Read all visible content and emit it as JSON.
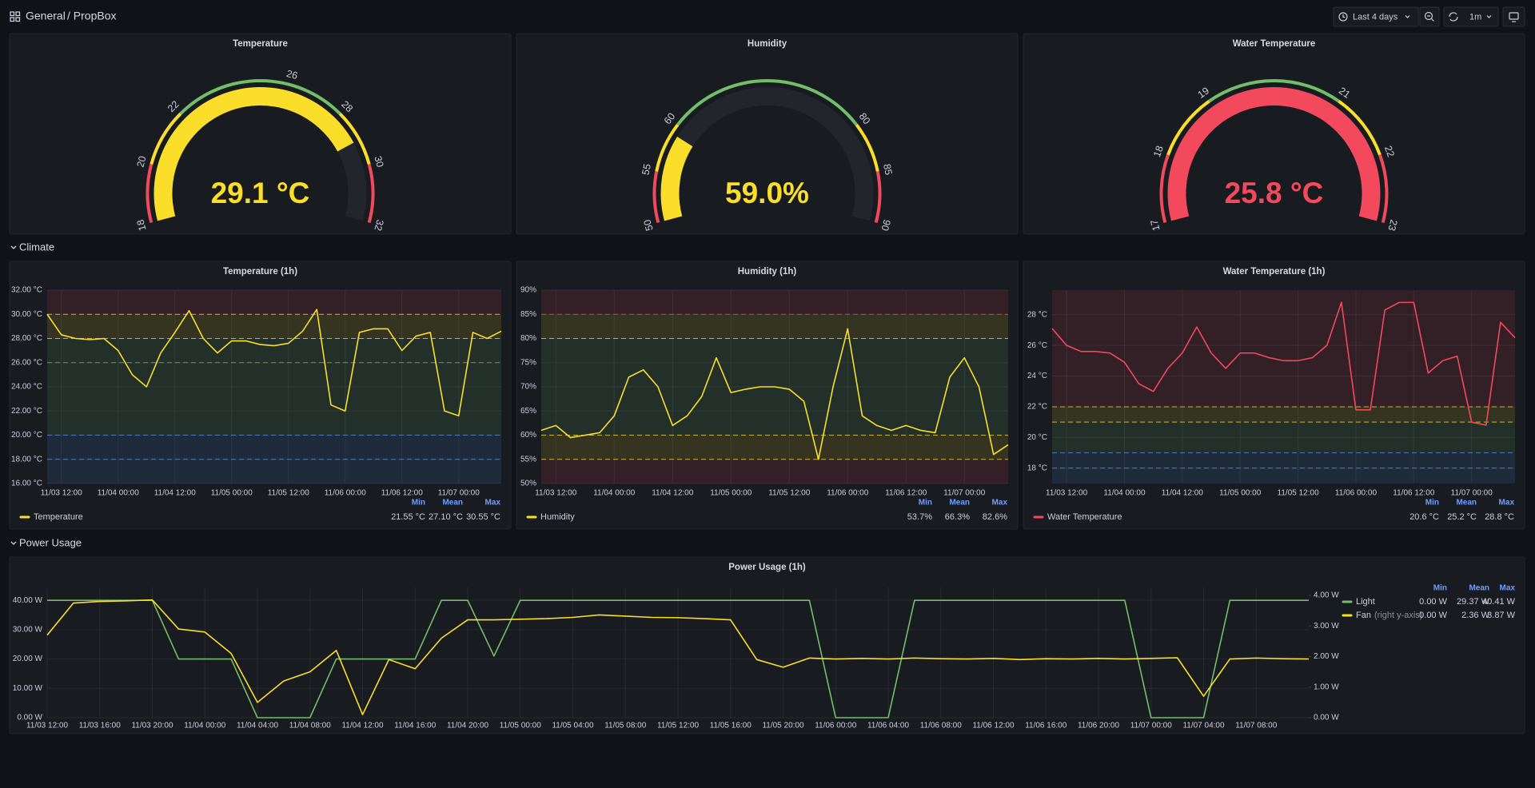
{
  "header": {
    "breadcrumb_root": "General",
    "breadcrumb_page": "/ PropBox",
    "time_range": "Last 4 days",
    "refresh": "1m"
  },
  "rows": [
    "Climate",
    "Power Usage"
  ],
  "chart_data": [
    {
      "type": "gauge",
      "title": "Temperature",
      "value": 29.1,
      "value_label": "29.1 °C",
      "color": "#fade2a",
      "range": [
        18,
        32
      ],
      "ticks": [
        18,
        20,
        22,
        26,
        28,
        30,
        32
      ],
      "bands": [
        {
          "from": 18,
          "to": 20,
          "color": "#f2495c"
        },
        {
          "from": 20,
          "to": 22,
          "color": "#fade2a"
        },
        {
          "from": 22,
          "to": 28,
          "color": "#73bf69"
        },
        {
          "from": 28,
          "to": 30,
          "color": "#fade2a"
        },
        {
          "from": 30,
          "to": 32,
          "color": "#f2495c"
        }
      ]
    },
    {
      "type": "gauge",
      "title": "Humidity",
      "value": 59.0,
      "value_label": "59.0%",
      "color": "#fade2a",
      "range": [
        50,
        90
      ],
      "ticks": [
        50,
        55,
        60,
        80,
        85,
        90
      ],
      "bands": [
        {
          "from": 50,
          "to": 55,
          "color": "#f2495c"
        },
        {
          "from": 55,
          "to": 60,
          "color": "#fade2a"
        },
        {
          "from": 60,
          "to": 80,
          "color": "#73bf69"
        },
        {
          "from": 80,
          "to": 85,
          "color": "#fade2a"
        },
        {
          "from": 85,
          "to": 90,
          "color": "#f2495c"
        }
      ]
    },
    {
      "type": "gauge",
      "title": "Water Temperature",
      "value": 25.8,
      "value_label": "25.8 °C",
      "color": "#f2495c",
      "range": [
        17,
        23
      ],
      "ticks": [
        17,
        18,
        19,
        21,
        22,
        23
      ],
      "bands": [
        {
          "from": 17,
          "to": 18,
          "color": "#f2495c"
        },
        {
          "from": 18,
          "to": 19,
          "color": "#fade2a"
        },
        {
          "from": 19,
          "to": 21,
          "color": "#73bf69"
        },
        {
          "from": 21,
          "to": 22,
          "color": "#fade2a"
        },
        {
          "from": 22,
          "to": 23,
          "color": "#f2495c"
        }
      ]
    },
    {
      "type": "line",
      "title": "Temperature (1h)",
      "x": [
        "11/03 09:00",
        "11/03 12:00",
        "11/03 15:00",
        "11/03 18:00",
        "11/03 21:00",
        "11/04 00:00",
        "11/04 03:00",
        "11/04 06:00",
        "11/04 09:00",
        "11/04 12:00",
        "11/04 15:00",
        "11/04 18:00",
        "11/04 21:00",
        "11/05 00:00",
        "11/05 03:00",
        "11/05 06:00",
        "11/05 09:00",
        "11/05 12:00",
        "11/05 15:00",
        "11/05 18:00",
        "11/05 21:00",
        "11/06 00:00",
        "11/06 03:00",
        "11/06 06:00",
        "11/06 09:00",
        "11/06 12:00",
        "11/06 15:00",
        "11/06 18:00",
        "11/06 21:00",
        "11/07 00:00",
        "11/07 03:00",
        "11/07 06:00",
        "11/07 09:00"
      ],
      "xlim": [
        "11/03 09:00",
        "11/07 09:00"
      ],
      "xticks": [
        "11/03 12:00",
        "11/04 00:00",
        "11/04 12:00",
        "11/05 00:00",
        "11/05 12:00",
        "11/06 00:00",
        "11/06 12:00",
        "11/07 00:00"
      ],
      "ylim": [
        16,
        32
      ],
      "yticks": [
        {
          "value": 16,
          "label": "16.00 °C"
        },
        {
          "value": 18,
          "label": "18.00 °C"
        },
        {
          "value": 20,
          "label": "20.00 °C"
        },
        {
          "value": 22,
          "label": "22.00 °C"
        },
        {
          "value": 24,
          "label": "24.00 °C"
        },
        {
          "value": 26,
          "label": "26.00 °C"
        },
        {
          "value": 28,
          "label": "28.00 °C"
        },
        {
          "value": 30,
          "label": "30.00 °C"
        },
        {
          "value": 32,
          "label": "32.00 °C"
        }
      ],
      "bands": [
        {
          "from": 16,
          "to": 20,
          "color": "#5794f2"
        },
        {
          "from": 20,
          "to": 28,
          "color": "#73bf69"
        },
        {
          "from": 28,
          "to": 30,
          "color": "#fade2a"
        },
        {
          "from": 30,
          "to": 32,
          "color": "#f2495c"
        }
      ],
      "threshold_lines": [
        {
          "value": 18,
          "color": "#5794f2"
        },
        {
          "value": 20,
          "color": "#5794f2"
        },
        {
          "value": 26,
          "color": "#73bf69"
        },
        {
          "value": 28,
          "color": "#fade2a"
        },
        {
          "value": 30,
          "color": "#fade2a"
        }
      ],
      "grid": true,
      "legend": "bottom",
      "legend_headers": [
        "Min",
        "Mean",
        "Max"
      ],
      "series": [
        {
          "name": "Temperature",
          "color": "#fade2a",
          "values": [
            30.0,
            28.3,
            28.0,
            27.9,
            28.0,
            27.0,
            25.0,
            24.0,
            26.8,
            28.5,
            30.3,
            28.0,
            26.8,
            27.8,
            27.8,
            27.5,
            27.4,
            27.6,
            28.6,
            30.4,
            22.5,
            22.0,
            28.5,
            28.8,
            28.8,
            27.0,
            28.2,
            28.5,
            22.0,
            21.6,
            28.5,
            28.0,
            28.6
          ],
          "stats": [
            "21.55 °C",
            "27.10 °C",
            "30.55 °C"
          ]
        }
      ]
    },
    {
      "type": "line",
      "title": "Humidity (1h)",
      "x": [
        "11/03 09:00",
        "11/03 12:00",
        "11/03 15:00",
        "11/03 18:00",
        "11/03 21:00",
        "11/04 00:00",
        "11/04 03:00",
        "11/04 06:00",
        "11/04 09:00",
        "11/04 12:00",
        "11/04 15:00",
        "11/04 18:00",
        "11/04 21:00",
        "11/05 00:00",
        "11/05 03:00",
        "11/05 06:00",
        "11/05 09:00",
        "11/05 12:00",
        "11/05 15:00",
        "11/05 18:00",
        "11/05 21:00",
        "11/06 00:00",
        "11/06 03:00",
        "11/06 06:00",
        "11/06 09:00",
        "11/06 12:00",
        "11/06 15:00",
        "11/06 18:00",
        "11/06 21:00",
        "11/07 00:00",
        "11/07 03:00",
        "11/07 06:00",
        "11/07 09:00"
      ],
      "xlim": [
        "11/03 09:00",
        "11/07 09:00"
      ],
      "xticks": [
        "11/03 12:00",
        "11/04 00:00",
        "11/04 12:00",
        "11/05 00:00",
        "11/05 12:00",
        "11/06 00:00",
        "11/06 12:00",
        "11/07 00:00"
      ],
      "ylim": [
        50,
        90
      ],
      "yticks": [
        {
          "value": 50,
          "label": "50%"
        },
        {
          "value": 55,
          "label": "55%"
        },
        {
          "value": 60,
          "label": "60%"
        },
        {
          "value": 65,
          "label": "65%"
        },
        {
          "value": 70,
          "label": "70%"
        },
        {
          "value": 75,
          "label": "75%"
        },
        {
          "value": 80,
          "label": "80%"
        },
        {
          "value": 85,
          "label": "85%"
        },
        {
          "value": 90,
          "label": "90%"
        }
      ],
      "bands": [
        {
          "from": 50,
          "to": 55,
          "color": "#f2495c"
        },
        {
          "from": 55,
          "to": 60,
          "color": "#fade2a"
        },
        {
          "from": 60,
          "to": 80,
          "color": "#73bf69"
        },
        {
          "from": 80,
          "to": 85,
          "color": "#fade2a"
        },
        {
          "from": 85,
          "to": 90,
          "color": "#f2495c"
        }
      ],
      "threshold_lines": [
        {
          "value": 55,
          "color": "#fade2a"
        },
        {
          "value": 60,
          "color": "#fade2a"
        },
        {
          "value": 80,
          "color": "#fade2a"
        },
        {
          "value": 85,
          "color": "#f2495c"
        }
      ],
      "grid": true,
      "legend": "bottom",
      "legend_headers": [
        "Min",
        "Mean",
        "Max"
      ],
      "series": [
        {
          "name": "Humidity",
          "color": "#fade2a",
          "values": [
            61,
            62,
            59.5,
            60,
            60.5,
            64,
            72,
            73.5,
            70,
            62,
            64,
            68,
            76,
            68.8,
            69.5,
            70,
            70,
            69.5,
            67,
            55,
            70,
            82,
            64,
            62,
            61,
            62,
            61,
            60.5,
            72,
            76,
            70,
            56,
            58
          ],
          "stats": [
            "53.7%",
            "66.3%",
            "82.6%"
          ]
        }
      ]
    },
    {
      "type": "line",
      "title": "Water Temperature (1h)",
      "x": [
        "11/03 09:00",
        "11/03 12:00",
        "11/03 15:00",
        "11/03 18:00",
        "11/03 21:00",
        "11/04 00:00",
        "11/04 03:00",
        "11/04 06:00",
        "11/04 09:00",
        "11/04 12:00",
        "11/04 15:00",
        "11/04 18:00",
        "11/04 21:00",
        "11/05 00:00",
        "11/05 03:00",
        "11/05 06:00",
        "11/05 09:00",
        "11/05 12:00",
        "11/05 15:00",
        "11/05 18:00",
        "11/05 21:00",
        "11/06 00:00",
        "11/06 03:00",
        "11/06 06:00",
        "11/06 09:00",
        "11/06 12:00",
        "11/06 15:00",
        "11/06 18:00",
        "11/06 21:00",
        "11/07 00:00",
        "11/07 03:00",
        "11/07 06:00",
        "11/07 09:00"
      ],
      "xlim": [
        "11/03 09:00",
        "11/07 09:00"
      ],
      "xticks": [
        "11/03 12:00",
        "11/04 00:00",
        "11/04 12:00",
        "11/05 00:00",
        "11/05 12:00",
        "11/06 00:00",
        "11/06 12:00",
        "11/07 00:00"
      ],
      "ylim": [
        17,
        29.6
      ],
      "yticks": [
        {
          "value": 18,
          "label": "18 °C"
        },
        {
          "value": 20,
          "label": "20 °C"
        },
        {
          "value": 22,
          "label": "22 °C"
        },
        {
          "value": 24,
          "label": "24 °C"
        },
        {
          "value": 26,
          "label": "26 °C"
        },
        {
          "value": 28,
          "label": "28 °C"
        }
      ],
      "bands": [
        {
          "from": 17,
          "to": 19,
          "color": "#5794f2"
        },
        {
          "from": 19,
          "to": 21,
          "color": "#73bf69"
        },
        {
          "from": 21,
          "to": 22,
          "color": "#fade2a"
        },
        {
          "from": 22,
          "to": 29.6,
          "color": "#f2495c"
        }
      ],
      "threshold_lines": [
        {
          "value": 18,
          "color": "#5794f2"
        },
        {
          "value": 19,
          "color": "#5794f2"
        },
        {
          "value": 21,
          "color": "#fade2a"
        },
        {
          "value": 22,
          "color": "#fade2a"
        }
      ],
      "grid": true,
      "legend": "bottom",
      "legend_headers": [
        "Min",
        "Mean",
        "Max"
      ],
      "series": [
        {
          "name": "Water Temperature",
          "color": "#f2495c",
          "values": [
            27.1,
            26,
            25.6,
            25.6,
            25.5,
            24.9,
            23.5,
            23,
            24.5,
            25.5,
            27.2,
            25.5,
            24.5,
            25.5,
            25.5,
            25.2,
            25,
            25,
            25.2,
            26,
            28.8,
            21.8,
            21.8,
            28.3,
            28.8,
            28.8,
            24.2,
            25,
            25.3,
            21,
            20.8,
            27.5,
            26.5
          ],
          "stats": [
            "20.6 °C",
            "25.2 °C",
            "28.8 °C"
          ]
        }
      ]
    },
    {
      "type": "line",
      "title": "Power Usage (1h)",
      "x": [
        "11/03 12:00",
        "11/03 14:00",
        "11/03 16:00",
        "11/03 18:00",
        "11/03 20:00",
        "11/03 22:00",
        "11/04 00:00",
        "11/04 02:00",
        "11/04 04:00",
        "11/04 06:00",
        "11/04 08:00",
        "11/04 10:00",
        "11/04 12:00",
        "11/04 14:00",
        "11/04 16:00",
        "11/04 18:00",
        "11/04 20:00",
        "11/04 22:00",
        "11/05 00:00",
        "11/05 02:00",
        "11/05 04:00",
        "11/05 06:00",
        "11/05 08:00",
        "11/05 10:00",
        "11/05 12:00",
        "11/05 14:00",
        "11/05 16:00",
        "11/05 18:00",
        "11/05 20:00",
        "11/05 22:00",
        "11/06 00:00",
        "11/06 02:00",
        "11/06 04:00",
        "11/06 06:00",
        "11/06 08:00",
        "11/06 10:00",
        "11/06 12:00",
        "11/06 14:00",
        "11/06 16:00",
        "11/06 18:00",
        "11/06 20:00",
        "11/06 22:00",
        "11/07 00:00",
        "11/07 02:00",
        "11/07 04:00",
        "11/07 06:00",
        "11/07 08:00",
        "11/07 10:00",
        "11/07 12:00"
      ],
      "xlim": [
        "11/03 12:00",
        "11/07 12:00"
      ],
      "xticks": [
        "11/03 12:00",
        "11/03 16:00",
        "11/03 20:00",
        "11/04 00:00",
        "11/04 04:00",
        "11/04 08:00",
        "11/04 12:00",
        "11/04 16:00",
        "11/04 20:00",
        "11/05 00:00",
        "11/05 04:00",
        "11/05 08:00",
        "11/05 12:00",
        "11/05 16:00",
        "11/05 20:00",
        "11/06 00:00",
        "11/06 04:00",
        "11/06 08:00",
        "11/06 12:00",
        "11/06 16:00",
        "11/06 20:00",
        "11/07 00:00",
        "11/07 04:00",
        "11/07 08:00"
      ],
      "ylim": [
        0,
        44.4
      ],
      "yticks": [
        {
          "value": 0,
          "label": "0.00 W"
        },
        {
          "value": 10,
          "label": "10.00 W"
        },
        {
          "value": 20,
          "label": "20.00 W"
        },
        {
          "value": 30,
          "label": "30.00 W"
        },
        {
          "value": 40,
          "label": "40.00 W"
        }
      ],
      "y2lim": [
        0,
        4.26
      ],
      "y2ticks": [
        {
          "value": 0,
          "label": "0.00 W"
        },
        {
          "value": 1,
          "label": "1.00 W"
        },
        {
          "value": 2,
          "label": "2.00 W"
        },
        {
          "value": 3,
          "label": "3.00 W"
        },
        {
          "value": 4,
          "label": "4.00 W"
        }
      ],
      "grid": true,
      "legend": "right",
      "legend_headers": [
        "Min",
        "Mean",
        "Max"
      ],
      "series": [
        {
          "name": "Light",
          "color": "#73bf69",
          "values": [
            40,
            40,
            40,
            40,
            40,
            20,
            20,
            20,
            0,
            0,
            0,
            20,
            20,
            20,
            20,
            40,
            40,
            21,
            40,
            40,
            40,
            40,
            40,
            40,
            40,
            40,
            40,
            40,
            40,
            40,
            0,
            0,
            0,
            40,
            40,
            40,
            40,
            40,
            40,
            40,
            40,
            40,
            0,
            0,
            0,
            40,
            40,
            40,
            40
          ],
          "stats": [
            "0.00 W",
            "29.37 W",
            "40.41 W"
          ]
        },
        {
          "name": "Fan",
          "axis_note": "(right y-axis)",
          "axis": "y2",
          "color": "#fade2a",
          "values": [
            2.7,
            3.75,
            3.8,
            3.82,
            3.85,
            2.9,
            2.8,
            2.1,
            0.5,
            1.2,
            1.5,
            2.2,
            0.1,
            1.9,
            1.6,
            2.6,
            3.2,
            3.2,
            3.22,
            3.24,
            3.28,
            3.36,
            3.32,
            3.28,
            3.27,
            3.24,
            3.2,
            1.9,
            1.65,
            1.95,
            1.92,
            1.94,
            1.92,
            1.95,
            1.93,
            1.92,
            1.94,
            1.9,
            1.93,
            1.92,
            1.94,
            1.92,
            1.94,
            1.96,
            0.7,
            1.92,
            1.95,
            1.93,
            1.92
          ],
          "stats": [
            "0.00 W",
            "2.36 W",
            "3.87 W"
          ]
        }
      ]
    }
  ]
}
